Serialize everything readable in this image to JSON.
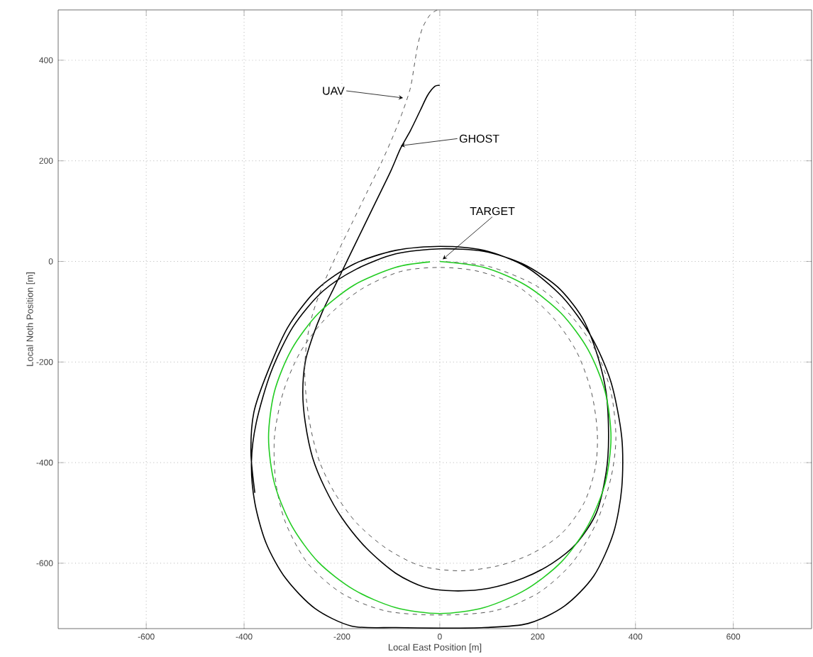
{
  "chart_data": {
    "type": "line",
    "xlabel": "Local East Position [m]",
    "ylabel": "Local Noth Position [m]",
    "xlim": [
      -780,
      760
    ],
    "ylim": [
      -730,
      500
    ],
    "xticks": [
      -600,
      -400,
      -200,
      0,
      200,
      400,
      600
    ],
    "yticks": [
      -600,
      -400,
      -200,
      0,
      200,
      400
    ],
    "grid": true,
    "marker": "none",
    "series": [
      {
        "color": "#22cc22",
        "line_style": "solid",
        "x": [
          0,
          91,
          175,
          248,
          303,
          338,
          350,
          338,
          303,
          248,
          175,
          91,
          0,
          -91,
          -175,
          -248,
          -303,
          -338,
          -350,
          -338,
          -303,
          -248,
          -175,
          -91,
          -20
        ],
        "values": [
          0,
          -12,
          -47,
          -103,
          -175,
          -259,
          -350,
          -441,
          -525,
          -598,
          -653,
          -688,
          -700,
          -688,
          -653,
          -598,
          -525,
          -441,
          -350,
          -259,
          -175,
          -103,
          -47,
          -12,
          -1
        ]
      },
      {
        "color": "#555555",
        "line_style": "dashed",
        "x": [
          -5,
          -20,
          -35,
          -45,
          -52,
          -60,
          -75,
          -95,
          -120,
          -150,
          -180,
          -210,
          -240,
          -260,
          -272,
          -276,
          -272,
          -262,
          -245,
          -215,
          -170,
          -110,
          -40,
          40,
          120,
          190,
          250,
          295,
          318,
          322,
          310,
          280,
          230,
          160,
          80,
          0,
          -80,
          -160,
          -230,
          -285,
          -320,
          -338,
          -335,
          -315,
          -270,
          -200,
          -110,
          0,
          110,
          200,
          270,
          320,
          350,
          360,
          350,
          320,
          270,
          200,
          100,
          0
        ],
        "values": [
          500,
          490,
          465,
          430,
          390,
          345,
          300,
          250,
          195,
          135,
          75,
          15,
          -50,
          -105,
          -160,
          -220,
          -280,
          -340,
          -400,
          -460,
          -520,
          -570,
          -605,
          -615,
          -605,
          -580,
          -540,
          -480,
          -410,
          -340,
          -260,
          -180,
          -110,
          -50,
          -20,
          -12,
          -20,
          -55,
          -110,
          -180,
          -260,
          -350,
          -440,
          -520,
          -600,
          -660,
          -695,
          -703,
          -695,
          -660,
          -600,
          -520,
          -430,
          -350,
          -260,
          -180,
          -110,
          -50,
          -10,
          0
        ]
      },
      {
        "color": "#000000",
        "line_style": "solid",
        "x": [
          0,
          -10,
          -25,
          -40,
          -60,
          -80,
          -100,
          -130,
          -160,
          -190,
          -215,
          -240,
          -260,
          -275,
          -280,
          -275,
          -260,
          -235,
          -200,
          -150,
          -90,
          -30,
          30,
          100,
          170,
          230,
          280,
          320,
          340,
          345,
          340,
          320,
          290,
          240,
          170,
          90,
          0,
          -90,
          -170,
          -240,
          -300,
          -345,
          -375,
          -385,
          -378,
          -355,
          -315,
          -255,
          -180,
          -90,
          0,
          90,
          180,
          255,
          315,
          355,
          372,
          372,
          350,
          310,
          250,
          175,
          90,
          0,
          -90,
          -175,
          -250,
          -310,
          -352,
          -380,
          -386,
          -378
        ],
        "values": [
          350,
          348,
          330,
          300,
          260,
          225,
          180,
          120,
          60,
          0,
          -50,
          -100,
          -150,
          -200,
          -260,
          -320,
          -390,
          -450,
          -510,
          -570,
          -620,
          -648,
          -655,
          -650,
          -630,
          -600,
          -560,
          -500,
          -420,
          -350,
          -260,
          -180,
          -110,
          -50,
          -5,
          20,
          25,
          15,
          -15,
          -60,
          -130,
          -220,
          -320,
          -400,
          -480,
          -560,
          -630,
          -690,
          -725,
          -728,
          -729,
          -728,
          -720,
          -685,
          -625,
          -540,
          -450,
          -350,
          -240,
          -150,
          -70,
          -10,
          22,
          30,
          22,
          -5,
          -55,
          -130,
          -220,
          -300,
          -380,
          -460
        ]
      }
    ],
    "annotations": [
      {
        "text": "UAV",
        "x": -75,
        "y": 325
      },
      {
        "text": "GHOST",
        "x": -80,
        "y": 230
      },
      {
        "text": "TARGET",
        "x": 6,
        "y": 4
      }
    ]
  }
}
